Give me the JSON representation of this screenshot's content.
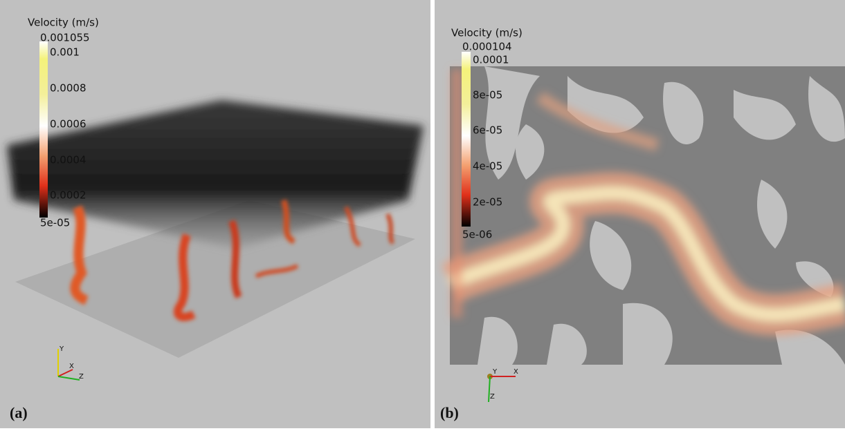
{
  "panels": [
    {
      "label": "(a)",
      "colorbar": {
        "title": "Velocity (m/s)",
        "max_label": "0.001055",
        "ticks": [
          "0.001",
          "0.0008",
          "0.0006",
          "0.0004",
          "0.0002"
        ],
        "min_label": "5e-05"
      },
      "axes": [
        "Y",
        "X",
        "Z"
      ]
    },
    {
      "label": "(b)",
      "colorbar": {
        "title": "Velocity (m/s)",
        "max_label": "0.000104",
        "ticks": [
          "0.0001",
          "8e-05",
          "6e-05",
          "4e-05",
          "2e-05"
        ],
        "min_label": "5e-06"
      },
      "axes": [
        "Y",
        "X",
        "Z"
      ]
    }
  ]
}
